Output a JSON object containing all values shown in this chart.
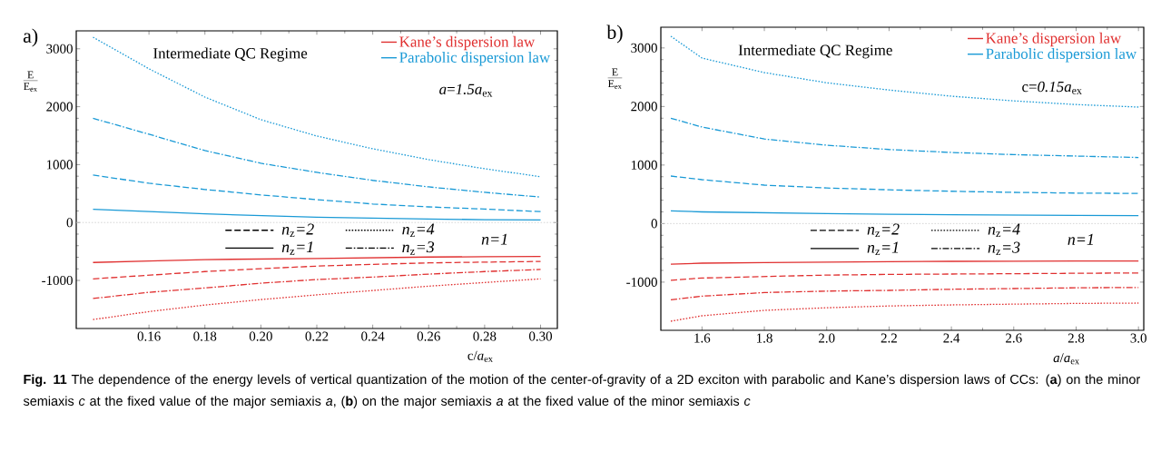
{
  "chart_data": [
    {
      "type": "line",
      "title": "a)",
      "xlabel": "c/*a*$_{ex}$",
      "ylabel": "\\frac{\\mathrm{E}}{\\mathrm{E}_{\\mathrm{ex}}}",
      "x": [
        0.14,
        0.16,
        0.18,
        0.2,
        0.22,
        0.24,
        0.26,
        0.28,
        0.3
      ],
      "series": [
        {
          "name": "Parabolic dispersion law",
          "color": "#1a9ad6",
          "line_style": "solid",
          "values": [
            230,
            190,
            150,
            120,
            90,
            75,
            60,
            50,
            45
          ]
        },
        {
          "color": "#1a9ad6",
          "line_style": "dashed",
          "values": [
            820,
            678,
            571,
            477,
            395,
            320,
            270,
            232,
            188
          ]
        },
        {
          "color": "#1a9ad6",
          "line_style": "dashdot",
          "values": [
            1800,
            1525,
            1243,
            1023,
            866,
            728,
            615,
            521,
            440
          ]
        },
        {
          "color": "#1a9ad6",
          "line_style": "dotted",
          "values": [
            3200,
            2655,
            2166,
            1776,
            1494,
            1274,
            1086,
            929,
            791
          ]
        },
        {
          "name": "Kane’s dispersion law",
          "color": "#e03030",
          "line_style": "solid",
          "values": [
            -690,
            -665,
            -640,
            -630,
            -620,
            -608,
            -596,
            -590,
            -585
          ]
        },
        {
          "color": "#e03030",
          "line_style": "dashed",
          "values": [
            -973,
            -910,
            -847,
            -797,
            -753,
            -722,
            -697,
            -684,
            -672
          ]
        },
        {
          "color": "#e03030",
          "line_style": "dashdot",
          "values": [
            -1312,
            -1205,
            -1130,
            -1048,
            -985,
            -942,
            -891,
            -847,
            -810
          ]
        },
        {
          "color": "#e03030",
          "line_style": "dotted",
          "values": [
            -1676,
            -1538,
            -1425,
            -1331,
            -1249,
            -1174,
            -1099,
            -1036,
            -973
          ]
        }
      ],
      "xlim": [
        0.134,
        0.306
      ],
      "ylim": [
        -1830,
        3310
      ],
      "xticks": [
        0.16,
        0.18,
        {
          "value": 0.2,
          "label": "0.20"
        },
        0.22,
        0.24,
        0.26,
        0.28,
        {
          "value": 0.3,
          "label": "0.30"
        }
      ],
      "yticks": [
        -1000,
        0,
        1000,
        2000,
        3000
      ],
      "ref_lines": [
        {
          "axis": "y",
          "value": 0,
          "color": "#d0d0d0",
          "line_style": "dotted"
        }
      ],
      "legend": "top right",
      "annotations": [
        "Intermediate QC Regime",
        "*a*=*1.5a*$_{ex}$",
        "*n*$_{z}$*=2*",
        "*n*$_{z}$*=1*",
        "*n*$_{z}$*=4*",
        "*n*$_{z}$*=3*",
        "*n=1*"
      ]
    },
    {
      "type": "line",
      "title": "b)",
      "xlabel": "*a*/*a*$_{ex}$",
      "ylabel": "\\frac{\\mathrm{E}}{\\mathrm{E}_{\\mathrm{ex}}}",
      "x": [
        1.5,
        1.6,
        1.8,
        2.0,
        2.2,
        2.4,
        2.6,
        2.8,
        3.0
      ],
      "series": [
        {
          "name": "Parabolic dispersion law",
          "color": "#1a9ad6",
          "line_style": "solid",
          "values": [
            217,
            200,
            185,
            170,
            160,
            152,
            146,
            140,
            136
          ]
        },
        {
          "color": "#1a9ad6",
          "line_style": "dashed",
          "values": [
            812,
            750,
            657,
            608,
            577,
            552,
            533,
            521,
            515
          ]
        },
        {
          "color": "#1a9ad6",
          "line_style": "dashdot",
          "values": [
            1800,
            1649,
            1444,
            1339,
            1265,
            1215,
            1178,
            1153,
            1128
          ]
        },
        {
          "color": "#1a9ad6",
          "line_style": "dotted",
          "values": [
            3200,
            2827,
            2579,
            2405,
            2281,
            2176,
            2096,
            2033,
            1990
          ]
        },
        {
          "name": "Kane’s dispersion law",
          "color": "#e03030",
          "line_style": "solid",
          "values": [
            -694,
            -676,
            -665,
            -657,
            -651,
            -645,
            -642,
            -640,
            -639
          ]
        },
        {
          "color": "#e03030",
          "line_style": "dashed",
          "values": [
            -967,
            -930,
            -905,
            -880,
            -868,
            -862,
            -856,
            -849,
            -843
          ]
        },
        {
          "color": "#e03030",
          "line_style": "dashdot",
          "values": [
            -1302,
            -1240,
            -1178,
            -1153,
            -1141,
            -1122,
            -1110,
            -1097,
            -1091
          ]
        },
        {
          "color": "#e03030",
          "line_style": "dotted",
          "values": [
            -1668,
            -1575,
            -1482,
            -1438,
            -1407,
            -1389,
            -1376,
            -1364,
            -1358
          ]
        }
      ],
      "xlim": [
        1.468,
        3.017
      ],
      "ylim": [
        -1823,
        3354
      ],
      "xticks": [
        1.6,
        1.8,
        {
          "value": 2.0,
          "label": "2.0"
        },
        2.2,
        2.4,
        2.6,
        2.8,
        {
          "value": 3.0,
          "label": "3.0"
        }
      ],
      "yticks": [
        -1000,
        0,
        1000,
        2000,
        3000
      ],
      "ref_lines": [
        {
          "axis": "y",
          "value": 0,
          "color": "#d0d0d0",
          "line_style": "dotted"
        }
      ],
      "legend": "top right",
      "annotations": [
        "Intermediate QC Regime",
        "c=*0.15a*$_{ex}$",
        "*n*$_{z}$*=2*",
        "*n*$_{z}$*=1*",
        "*n*$_{z}$*=4*",
        "*n*$_{z}$*=3*",
        "*n=1*",
        "**Fig. 11** The dependence of the energy levels of vertical quantization of the motion of the center-of-gravity of a 2D exciton with parabolic and Kane’s dispersion laws of CCs: (**a**) on the minor semiaxis *c* at the fixed value of the major semiaxis *a*, (**b**) on the major semiaxis *a* at the fixed value of the minor semiaxis *c*"
      ]
    }
  ]
}
